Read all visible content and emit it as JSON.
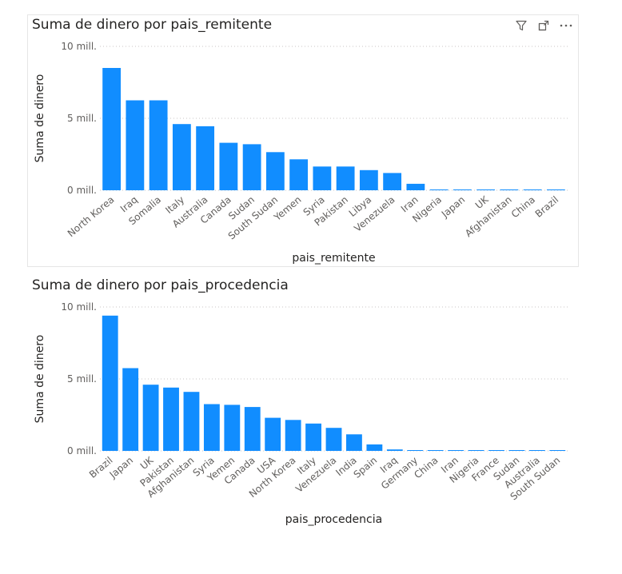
{
  "colors": {
    "bar": "#118dff",
    "grid": "#c8c6c4",
    "text": "#605e5c",
    "title": "#252423"
  },
  "header_icons": [
    "filter-icon",
    "focus-mode-icon",
    "more-options-icon"
  ],
  "chart_data": [
    {
      "type": "bar",
      "title": "Suma de dinero por pais_remitente",
      "xlabel": "pais_remitente",
      "ylabel": "Suma de dinero",
      "ylim": [
        0,
        10
      ],
      "yticks": [
        {
          "value": 0,
          "label": "0 mill."
        },
        {
          "value": 5,
          "label": "5 mill."
        },
        {
          "value": 10,
          "label": "10 mill."
        }
      ],
      "grid": true,
      "categories": [
        "North Korea",
        "Iraq",
        "Somalia",
        "Italy",
        "Australia",
        "Canada",
        "Sudan",
        "South Sudan",
        "Yemen",
        "Syria",
        "Pakistan",
        "Libya",
        "Venezuela",
        "Iran",
        "Nigeria",
        "Japan",
        "UK",
        "Afghanistan",
        "China",
        "Brazil"
      ],
      "values": [
        8.5,
        6.25,
        6.25,
        4.6,
        4.45,
        3.3,
        3.2,
        2.65,
        2.15,
        1.65,
        1.65,
        1.4,
        1.2,
        0.45,
        0.05,
        0.05,
        0.05,
        0.05,
        0.05,
        0.05
      ]
    },
    {
      "type": "bar",
      "title": "Suma de dinero por pais_procedencia",
      "xlabel": "pais_procedencia",
      "ylabel": "Suma de dinero",
      "ylim": [
        0,
        10
      ],
      "yticks": [
        {
          "value": 0,
          "label": "0 mill."
        },
        {
          "value": 5,
          "label": "5 mill."
        },
        {
          "value": 10,
          "label": "10 mill."
        }
      ],
      "grid": true,
      "categories": [
        "Brazil",
        "Japan",
        "UK",
        "Pakistan",
        "Afghanistan",
        "Syria",
        "Yemen",
        "Canada",
        "USA",
        "North Korea",
        "Italy",
        "Venezuela",
        "India",
        "Spain",
        "Iraq",
        "Germany",
        "China",
        "Iran",
        "Nigeria",
        "France",
        "Sudan",
        "Australia",
        "South Sudan"
      ],
      "values": [
        9.4,
        5.75,
        4.6,
        4.4,
        4.1,
        3.25,
        3.2,
        3.05,
        2.3,
        2.15,
        1.9,
        1.6,
        1.15,
        0.45,
        0.1,
        0.05,
        0.05,
        0.05,
        0.05,
        0.05,
        0.05,
        0.05,
        0.05
      ]
    }
  ]
}
